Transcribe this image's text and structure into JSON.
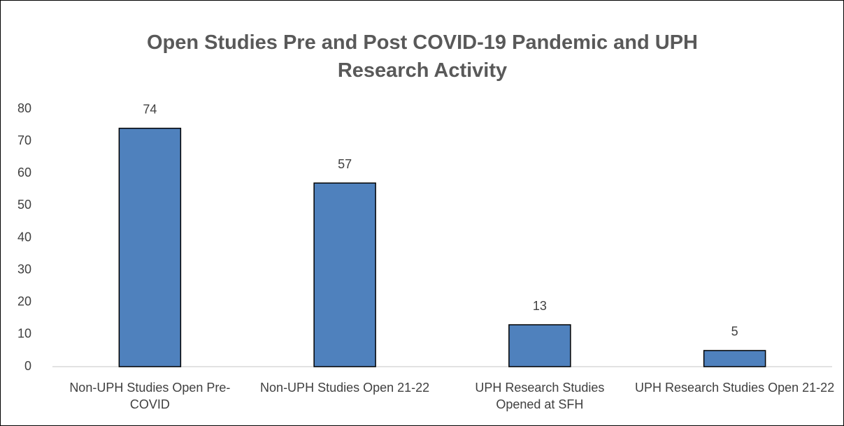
{
  "chart_data": {
    "type": "bar",
    "title": "Open Studies Pre and Post COVID-19 Pandemic and UPH Research Activity",
    "categories": [
      "Non-UPH Studies Open Pre-COVID",
      "Non-UPH Studies Open 21-22",
      "UPH Research Studies Opened at SFH",
      "UPH Research Studies Open 21-22"
    ],
    "values": [
      74,
      57,
      13,
      5
    ],
    "color": "#4f81bd",
    "ylim": [
      0,
      80
    ],
    "yticks": [
      0,
      10,
      20,
      30,
      40,
      50,
      60,
      70,
      80
    ],
    "grid": false
  }
}
